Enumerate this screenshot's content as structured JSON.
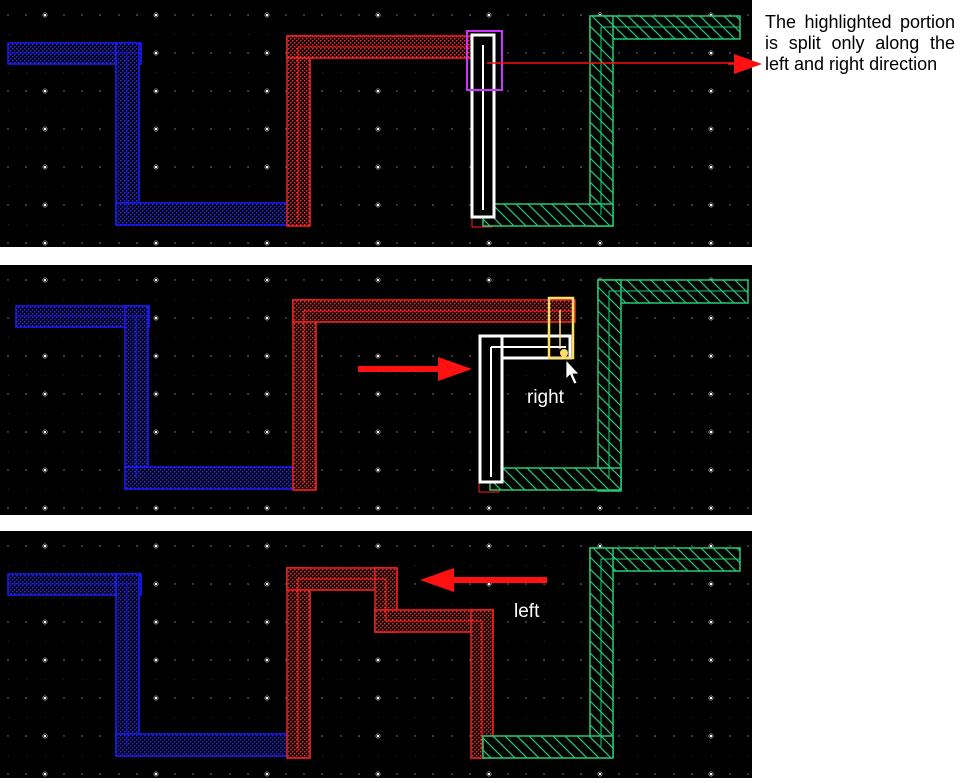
{
  "annotation": {
    "text": "The highlighted portion is split only along the left and right direction"
  },
  "panel2": {
    "direction_label": "right"
  },
  "panel3": {
    "direction_label": "left"
  },
  "colors": {
    "canvas": "#000000",
    "grid_dot": "#ffffff",
    "wire_blue": "#1a1aff",
    "wire_red": "#ff2020",
    "wire_green": "#22cc77",
    "highlight": "#ffffff",
    "selection_box": "#cc33ff",
    "handle": "#ffdd66",
    "arrow": "#ff1111"
  },
  "icons": [
    "mouse-pointer-icon",
    "arrow-right-icon",
    "arrow-left-icon"
  ]
}
